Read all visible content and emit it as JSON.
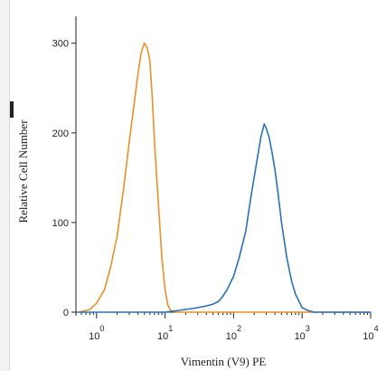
{
  "chart_data": {
    "type": "line",
    "xscale": "log",
    "xlabel": "Vimentin (V9) PE",
    "ylabel": "Relative Cell Number",
    "xlim": [
      0.5,
      10000
    ],
    "ylim": [
      0,
      330
    ],
    "x_ticks": [
      {
        "value": 1,
        "base": "10",
        "exp": "0"
      },
      {
        "value": 10,
        "base": "10",
        "exp": "1"
      },
      {
        "value": 100,
        "base": "10",
        "exp": "2"
      },
      {
        "value": 1000,
        "base": "10",
        "exp": "3"
      },
      {
        "value": 10000,
        "base": "10",
        "exp": "4"
      }
    ],
    "y_ticks": [
      {
        "value": 0,
        "label": "0"
      },
      {
        "value": 100,
        "label": "100"
      },
      {
        "value": 200,
        "label": "200"
      },
      {
        "value": 300,
        "label": "300"
      }
    ],
    "grid": false,
    "series": [
      {
        "color": "#e8902a",
        "x": [
          0.55,
          0.8,
          1.0,
          1.3,
          1.6,
          2.0,
          2.5,
          3.0,
          3.5,
          4.0,
          4.5,
          5.0,
          5.5,
          6.0,
          6.5,
          7.0,
          8.0,
          9.0,
          10,
          11,
          12,
          14,
          16,
          20,
          40,
          100,
          1000,
          10000
        ],
        "y": [
          0,
          3,
          10,
          25,
          50,
          85,
          140,
          190,
          230,
          265,
          290,
          300,
          295,
          280,
          240,
          190,
          120,
          60,
          25,
          8,
          2,
          0.5,
          0,
          0,
          0,
          0,
          0,
          0
        ]
      },
      {
        "color": "#2a72b5",
        "x": [
          0.55,
          10,
          20,
          30,
          40,
          50,
          60,
          70,
          80,
          100,
          120,
          150,
          180,
          220,
          250,
          280,
          300,
          330,
          360,
          400,
          450,
          500,
          600,
          700,
          800,
          1000,
          1200,
          1500,
          2000,
          10000
        ],
        "y": [
          0,
          0,
          3,
          5,
          7,
          9,
          12,
          18,
          25,
          40,
          60,
          90,
          130,
          170,
          195,
          210,
          205,
          195,
          180,
          160,
          130,
          100,
          60,
          35,
          20,
          5,
          2,
          0,
          0,
          0
        ]
      }
    ]
  }
}
